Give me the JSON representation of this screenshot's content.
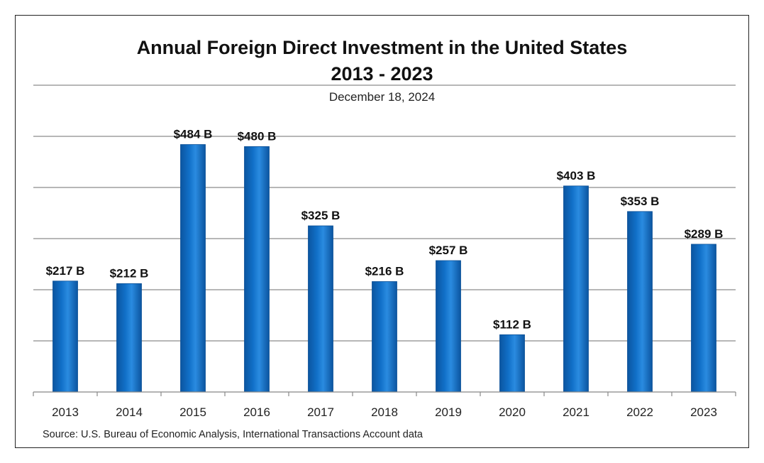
{
  "chart_data": {
    "type": "bar",
    "title": "Annual Foreign Direct Investment in the United States",
    "title_line2": "2013 - 2023",
    "subtitle": "December 18, 2024",
    "categories": [
      "2013",
      "2014",
      "2015",
      "2016",
      "2017",
      "2018",
      "2019",
      "2020",
      "2021",
      "2022",
      "2023"
    ],
    "values": [
      217,
      212,
      484,
      480,
      325,
      216,
      257,
      112,
      403,
      353,
      289
    ],
    "data_labels": [
      "$217 B",
      "$212 B",
      "$484 B",
      "$480 B",
      "$325 B",
      "$216 B",
      "$257 B",
      "$112 B",
      "$403 B",
      "$353 B",
      "$289 B"
    ],
    "xlabel": "",
    "ylabel": "",
    "ylim": [
      0,
      600
    ],
    "ytick_step": 100,
    "grid": true,
    "bar_color": "#1170c8",
    "source": "Source:  U.S. Bureau of Economic Analysis, International Transactions Account data"
  }
}
